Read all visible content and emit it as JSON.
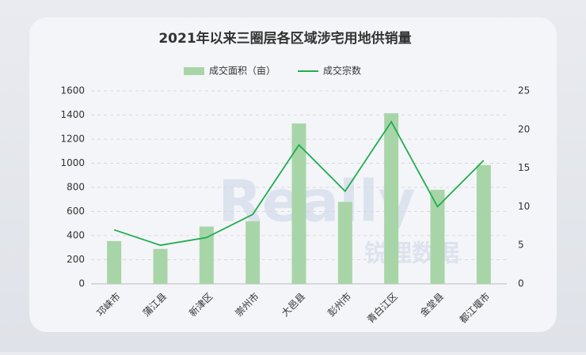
{
  "chart_data": {
    "type": "bar-line",
    "title": "2021年以来三圈层各区域涉宅用地供销量",
    "categories": [
      "邛崃市",
      "蒲江县",
      "新津区",
      "崇州市",
      "大邑县",
      "彭州市",
      "青白江区",
      "金堂县",
      "都江堰市"
    ],
    "series": [
      {
        "name": "成交面积（亩）",
        "type": "bar",
        "color": "#a8d5a8",
        "values": [
          355,
          290,
          475,
          520,
          1330,
          680,
          1415,
          780,
          985
        ]
      },
      {
        "name": "成交宗数",
        "type": "line",
        "axis": "y2",
        "color": "#1fae4f",
        "values": [
          7,
          5,
          6,
          9,
          18,
          12,
          21,
          10,
          16
        ]
      }
    ],
    "ylim": [
      0,
      1600
    ],
    "yticks": [
      0,
      200,
      400,
      600,
      800,
      1000,
      1200,
      1400,
      1600
    ],
    "y2lim": [
      0,
      25
    ],
    "y2ticks": [
      0,
      5,
      10,
      15,
      20,
      25
    ],
    "grid": true,
    "legend": "top",
    "watermark": [
      "Really",
      "锐理数据"
    ]
  }
}
